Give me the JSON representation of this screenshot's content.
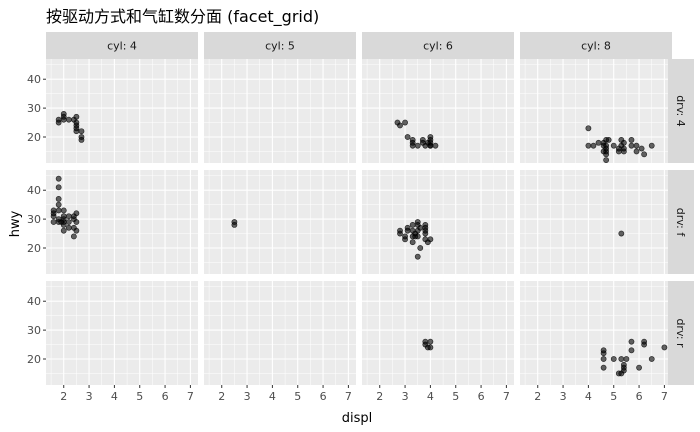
{
  "chart_data": {
    "type": "scatter",
    "title": "按驱动方式和气缸数分面 (facet_grid)",
    "xlabel": "displ",
    "ylabel": "hwy",
    "xlim": [
      1.3,
      7.3
    ],
    "ylim": [
      11,
      47
    ],
    "xticks": [
      2,
      3,
      4,
      5,
      6,
      7
    ],
    "yticks": [
      20,
      30,
      40
    ],
    "col_facets": [
      "cyl: 4",
      "cyl: 5",
      "cyl: 6",
      "cyl: 8"
    ],
    "row_facets": [
      "drv: 4",
      "drv: f",
      "drv: r"
    ],
    "grid": true,
    "point_color": "#000000",
    "point_alpha": 0.6,
    "panel_background": "#ebebeb",
    "strip_background": "#d9d9d9",
    "panels": [
      {
        "row": "drv: 4",
        "col": "cyl: 4",
        "points": [
          [
            1.8,
            26
          ],
          [
            1.8,
            25
          ],
          [
            2.0,
            28
          ],
          [
            2.0,
            27
          ],
          [
            2.0,
            26
          ],
          [
            2.2,
            26
          ],
          [
            2.4,
            26
          ],
          [
            2.5,
            27
          ],
          [
            2.5,
            25
          ],
          [
            2.5,
            24
          ],
          [
            2.5,
            23
          ],
          [
            2.5,
            22
          ],
          [
            2.7,
            22
          ],
          [
            2.7,
            20
          ],
          [
            2.7,
            19
          ]
        ]
      },
      {
        "row": "drv: 4",
        "col": "cyl: 5",
        "points": []
      },
      {
        "row": "drv: 4",
        "col": "cyl: 6",
        "points": [
          [
            2.7,
            25
          ],
          [
            2.8,
            24
          ],
          [
            3.0,
            25
          ],
          [
            3.1,
            20
          ],
          [
            3.3,
            17
          ],
          [
            3.3,
            18
          ],
          [
            3.5,
            17
          ],
          [
            3.7,
            18
          ],
          [
            3.7,
            19
          ],
          [
            4.0,
            17
          ],
          [
            4.0,
            19
          ],
          [
            4.0,
            20
          ],
          [
            4.0,
            18
          ],
          [
            4.0,
            17
          ],
          [
            4.2,
            17
          ],
          [
            3.8,
            17
          ],
          [
            3.9,
            18
          ],
          [
            3.3,
            19
          ]
        ]
      },
      {
        "row": "drv: 4",
        "col": "cyl: 8",
        "points": [
          [
            4.0,
            23
          ],
          [
            4.2,
            17
          ],
          [
            4.4,
            18
          ],
          [
            4.6,
            18
          ],
          [
            4.6,
            17
          ],
          [
            4.7,
            17
          ],
          [
            4.7,
            19
          ],
          [
            4.7,
            16
          ],
          [
            4.7,
            12
          ],
          [
            4.7,
            14
          ],
          [
            4.7,
            15
          ],
          [
            4.8,
            19
          ],
          [
            5.0,
            17
          ],
          [
            5.2,
            15
          ],
          [
            5.3,
            19
          ],
          [
            5.3,
            17
          ],
          [
            5.4,
            18
          ],
          [
            5.4,
            16
          ],
          [
            5.4,
            15
          ],
          [
            5.7,
            17
          ],
          [
            5.7,
            19
          ],
          [
            5.9,
            17
          ],
          [
            5.9,
            15
          ],
          [
            6.1,
            16
          ],
          [
            6.2,
            14
          ],
          [
            6.5,
            17
          ],
          [
            4.0,
            17
          ],
          [
            4.6,
            15
          ],
          [
            5.2,
            16
          ]
        ]
      },
      {
        "row": "drv: f",
        "col": "cyl: 4",
        "points": [
          [
            1.6,
            33
          ],
          [
            1.6,
            32
          ],
          [
            1.6,
            31
          ],
          [
            1.6,
            29
          ],
          [
            1.8,
            44
          ],
          [
            1.8,
            41
          ],
          [
            1.8,
            37
          ],
          [
            1.8,
            35
          ],
          [
            1.8,
            33
          ],
          [
            1.8,
            29
          ],
          [
            1.8,
            30
          ],
          [
            1.9,
            29
          ],
          [
            2.0,
            31
          ],
          [
            2.0,
            30
          ],
          [
            2.0,
            29
          ],
          [
            2.0,
            28
          ],
          [
            2.0,
            26
          ],
          [
            2.2,
            27
          ],
          [
            2.2,
            29
          ],
          [
            2.4,
            30
          ],
          [
            2.4,
            27
          ],
          [
            2.4,
            24
          ],
          [
            2.4,
            31
          ],
          [
            2.5,
            32
          ],
          [
            2.5,
            29
          ],
          [
            2.5,
            26
          ],
          [
            2.0,
            33
          ],
          [
            2.2,
            31
          ]
        ]
      },
      {
        "row": "drv: f",
        "col": "cyl: 5",
        "points": [
          [
            2.5,
            29
          ],
          [
            2.5,
            28
          ]
        ]
      },
      {
        "row": "drv: f",
        "col": "cyl: 6",
        "points": [
          [
            2.8,
            26
          ],
          [
            2.8,
            25
          ],
          [
            3.0,
            24
          ],
          [
            3.0,
            23
          ],
          [
            3.1,
            26
          ],
          [
            3.1,
            27
          ],
          [
            3.3,
            24
          ],
          [
            3.3,
            22
          ],
          [
            3.3,
            26
          ],
          [
            3.4,
            24
          ],
          [
            3.4,
            25
          ],
          [
            3.5,
            26
          ],
          [
            3.5,
            28
          ],
          [
            3.5,
            29
          ],
          [
            3.5,
            24
          ],
          [
            3.5,
            17
          ],
          [
            3.6,
            20
          ],
          [
            3.8,
            25
          ],
          [
            3.8,
            26
          ],
          [
            3.8,
            27
          ],
          [
            3.8,
            23
          ],
          [
            3.8,
            28
          ],
          [
            3.9,
            22
          ],
          [
            4.0,
            23
          ],
          [
            3.3,
            28
          ],
          [
            3.6,
            27
          ]
        ]
      },
      {
        "row": "drv: f",
        "col": "cyl: 8",
        "points": [
          [
            5.3,
            25
          ]
        ]
      },
      {
        "row": "drv: r",
        "col": "cyl: 4",
        "points": []
      },
      {
        "row": "drv: r",
        "col": "cyl: 5",
        "points": []
      },
      {
        "row": "drv: r",
        "col": "cyl: 6",
        "points": [
          [
            3.8,
            26
          ],
          [
            3.8,
            25
          ],
          [
            3.9,
            24
          ],
          [
            4.0,
            26
          ],
          [
            4.0,
            24
          ]
        ]
      },
      {
        "row": "drv: r",
        "col": "cyl: 8",
        "points": [
          [
            4.6,
            17
          ],
          [
            4.6,
            20
          ],
          [
            4.6,
            22
          ],
          [
            4.6,
            23
          ],
          [
            5.0,
            20
          ],
          [
            5.3,
            15
          ],
          [
            5.4,
            17
          ],
          [
            5.4,
            16
          ],
          [
            5.4,
            18
          ],
          [
            5.5,
            20
          ],
          [
            5.7,
            26
          ],
          [
            5.7,
            23
          ],
          [
            6.0,
            17
          ],
          [
            6.2,
            25
          ],
          [
            6.2,
            26
          ],
          [
            6.5,
            20
          ],
          [
            7.0,
            24
          ],
          [
            5.2,
            15
          ],
          [
            5.3,
            20
          ]
        ]
      }
    ]
  }
}
